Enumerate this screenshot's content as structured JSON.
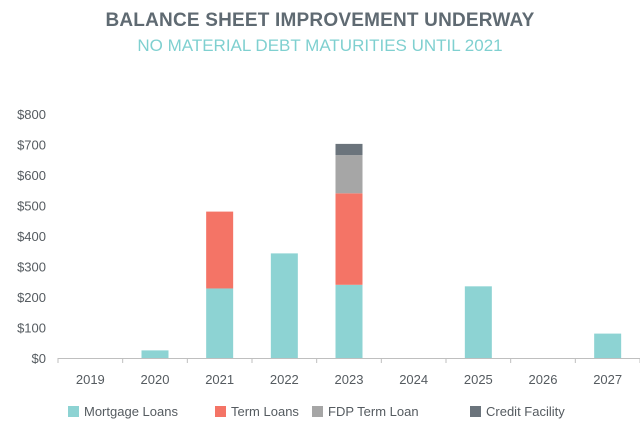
{
  "title": "BALANCE SHEET IMPROVEMENT UNDERWAY",
  "subtitle": "NO MATERIAL DEBT MATURITIES UNTIL 2021",
  "chart_data": {
    "type": "bar",
    "stacked": true,
    "categories": [
      "2019",
      "2020",
      "2021",
      "2022",
      "2023",
      "2024",
      "2025",
      "2026",
      "2027"
    ],
    "series": [
      {
        "name": "Mortgage Loans",
        "color": "#8dd3d3",
        "values": [
          0,
          25,
          228,
          343,
          240,
          0,
          235,
          0,
          80
        ]
      },
      {
        "name": "Term Loans",
        "color": "#f47466",
        "values": [
          0,
          0,
          252,
          0,
          300,
          0,
          0,
          0,
          0
        ]
      },
      {
        "name": "FDP Term Loan",
        "color": "#a6a6a6",
        "values": [
          0,
          0,
          0,
          0,
          125,
          0,
          0,
          0,
          0
        ]
      },
      {
        "name": "Credit Facility",
        "color": "#6b747c",
        "values": [
          0,
          0,
          0,
          0,
          37,
          0,
          0,
          0,
          0
        ]
      }
    ],
    "y_ticks": [
      "$0",
      "$100",
      "$200",
      "$300",
      "$400",
      "$500",
      "$600",
      "$700",
      "$800"
    ],
    "ylim": [
      0,
      800
    ],
    "grid": false,
    "legend": "bottom"
  }
}
